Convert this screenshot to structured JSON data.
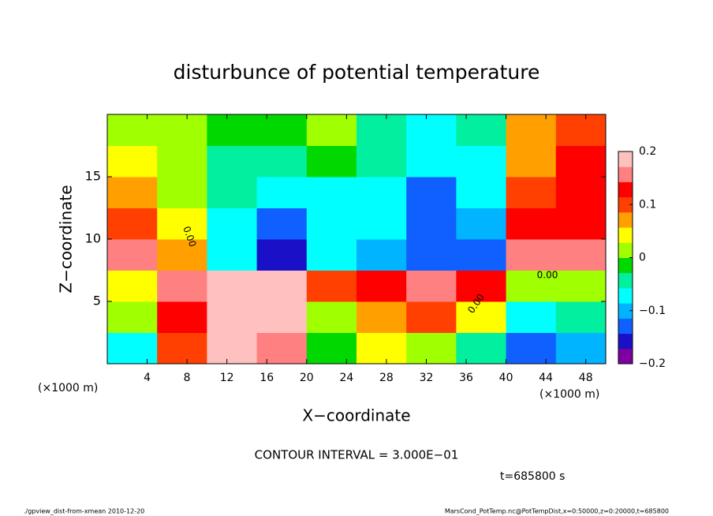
{
  "chart_data": {
    "type": "contour",
    "title": "disturbunce of potential temperature",
    "xlabel": "X−coordinate",
    "ylabel": "Z−coordinate",
    "x_unit_left": "(×1000 m)",
    "x_unit_right": "(×1000 m)",
    "contour_interval": "CONTOUR INTERVAL = 3.000E−01",
    "time_label": "t=685800 s",
    "footer_left": "./gpview_dist-from-xmean  2010-12-20",
    "footer_right": "MarsCond_PotTemp.nc@PotTempDist,x=0:50000,z=0:20000,t=685800",
    "contour_labels": [
      "0.00",
      "0.00",
      "0.00"
    ],
    "xlim": [
      0,
      50
    ],
    "ylim": [
      0,
      20
    ],
    "xticks": [
      4,
      8,
      12,
      16,
      20,
      24,
      28,
      32,
      36,
      40,
      44,
      48
    ],
    "yticks": [
      5,
      10,
      15
    ],
    "xbins": [
      0,
      5,
      10,
      15,
      20,
      25,
      30,
      35,
      40,
      45,
      50
    ],
    "zbins": [
      0,
      2.5,
      5,
      7.5,
      10,
      12.5,
      15,
      17.5,
      20
    ],
    "values": [
      [
        -0.08,
        0.1,
        0.18,
        0.15,
        -0.02,
        0.05,
        0.0,
        -0.05,
        -0.12,
        -0.1
      ],
      [
        0.0,
        0.12,
        0.2,
        0.18,
        0.02,
        0.08,
        0.1,
        0.05,
        -0.06,
        -0.05
      ],
      [
        0.05,
        0.15,
        0.2,
        0.2,
        0.1,
        0.12,
        0.15,
        0.12,
        0.0,
        0.02
      ],
      [
        0.16,
        0.06,
        -0.08,
        -0.16,
        -0.08,
        -0.1,
        -0.14,
        -0.14,
        0.16,
        0.16
      ],
      [
        0.1,
        0.04,
        -0.06,
        -0.12,
        -0.08,
        -0.08,
        -0.14,
        -0.1,
        0.12,
        0.14
      ],
      [
        0.06,
        0.02,
        -0.04,
        -0.08,
        -0.06,
        -0.06,
        -0.12,
        -0.08,
        0.1,
        0.12
      ],
      [
        0.04,
        0.0,
        -0.04,
        -0.04,
        -0.02,
        -0.04,
        -0.08,
        -0.06,
        0.08,
        0.12
      ],
      [
        0.02,
        0.0,
        -0.02,
        -0.02,
        0.0,
        -0.04,
        -0.06,
        -0.04,
        0.08,
        0.1
      ]
    ],
    "clim": [
      -0.2,
      0.2
    ],
    "colorbar_ticks": [
      {
        "value": 0.2,
        "label": "0.2"
      },
      {
        "value": 0.1,
        "label": "0.1"
      },
      0,
      {
        "value": -0.1,
        "label": "−0.1"
      },
      {
        "value": -0.2,
        "label": "−0.2"
      }
    ],
    "colormap": [
      "#7f00a0",
      "#1a10c8",
      "#1060ff",
      "#00b4ff",
      "#00ffff",
      "#00f0a0",
      "#00d800",
      "#a0ff00",
      "#ffff00",
      "#ffa000",
      "#ff4000",
      "#ff0000",
      "#ff8080",
      "#ffc0c0"
    ]
  }
}
